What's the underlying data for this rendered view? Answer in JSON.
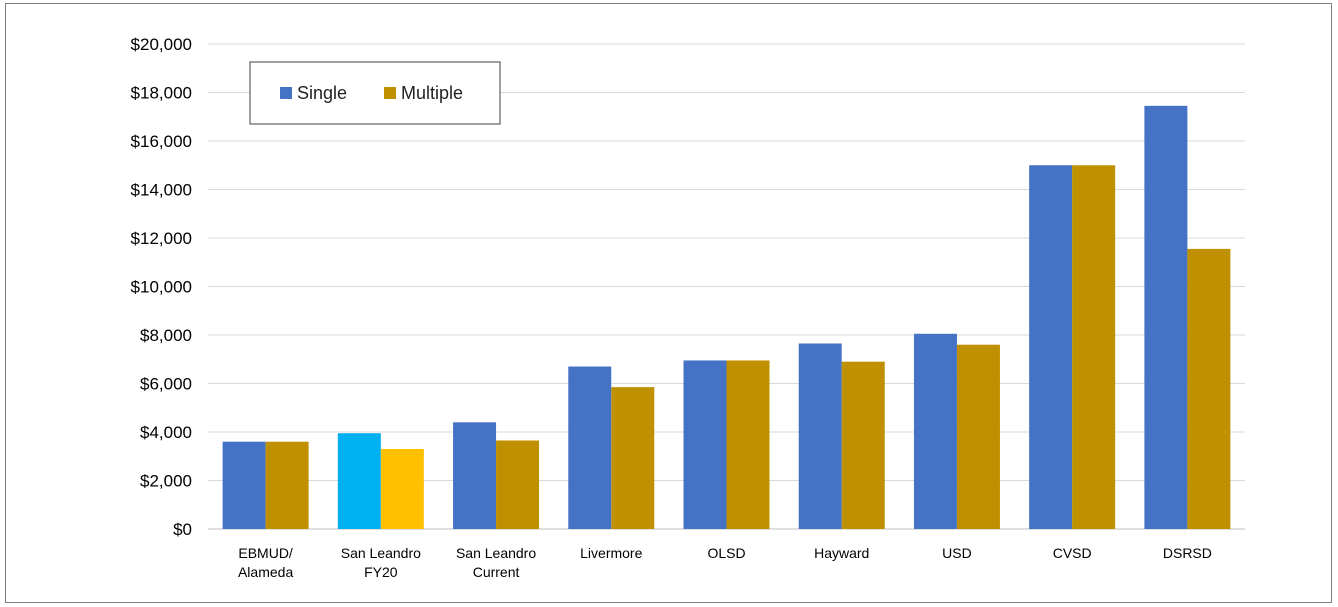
{
  "chart_data": {
    "type": "bar",
    "categories": [
      [
        "EBMUD/",
        "Alameda"
      ],
      [
        "San Leandro",
        "FY20"
      ],
      [
        "San Leandro",
        "Current"
      ],
      [
        "Livermore"
      ],
      [
        "OLSD"
      ],
      [
        "Hayward"
      ],
      [
        "USD"
      ],
      [
        "CVSD"
      ],
      [
        "DSRSD"
      ]
    ],
    "series": [
      {
        "name": "Single",
        "color": "#4472C4",
        "values": [
          3600,
          3950,
          4400,
          6700,
          6950,
          7650,
          8050,
          15000,
          17450
        ]
      },
      {
        "name": "Multiple",
        "color": "#BF9000",
        "values": [
          3600,
          3300,
          3650,
          5850,
          6950,
          6900,
          7600,
          15000,
          11550
        ]
      }
    ],
    "highlight": {
      "category_index": 1,
      "colors": [
        "#00B0F0",
        "#FFC000"
      ]
    },
    "ylim": [
      0,
      20000
    ],
    "ytick_step": 2000,
    "ytick_format": "currency",
    "grid": true,
    "legend": "top-left",
    "title": "",
    "xlabel": "",
    "ylabel": ""
  }
}
